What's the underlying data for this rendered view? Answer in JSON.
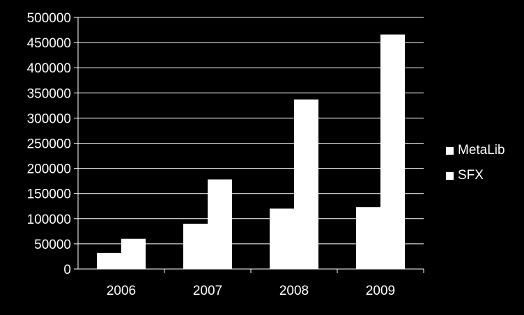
{
  "chart_data": {
    "type": "bar",
    "categories": [
      "2006",
      "2007",
      "2008",
      "2009"
    ],
    "series": [
      {
        "name": "MetaLib",
        "values": [
          32000,
          90000,
          120000,
          123000
        ],
        "color": "#ffffff"
      },
      {
        "name": "SFX",
        "values": [
          60000,
          178000,
          337000,
          466000
        ],
        "color": "#ffffff"
      }
    ],
    "ylim": [
      0,
      500000
    ],
    "yticks": [
      "0",
      "50000",
      "100000",
      "150000",
      "200000",
      "250000",
      "300000",
      "350000",
      "400000",
      "450000",
      "500000"
    ],
    "grid": true,
    "legend": "right",
    "background": "#000000"
  }
}
